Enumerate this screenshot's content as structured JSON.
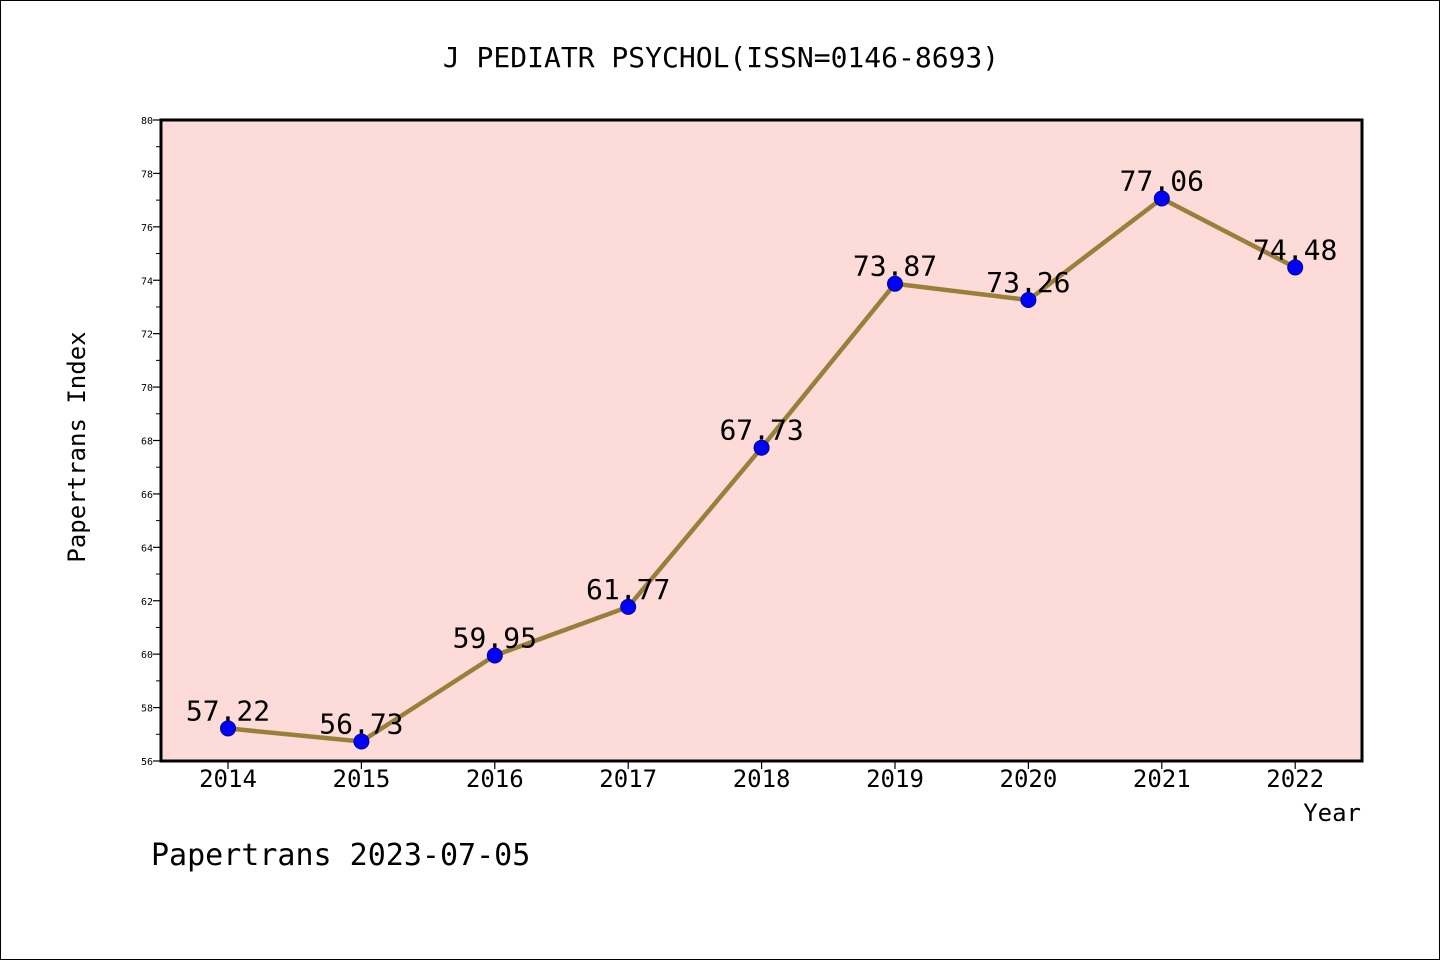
{
  "chart_data": {
    "type": "line",
    "title": "J PEDIATR PSYCHOL(ISSN=0146-8693)",
    "xlabel": "Year",
    "ylabel": "Papertrans Index",
    "footer": "Papertrans 2023-07-05",
    "categories": [
      "2014",
      "2015",
      "2016",
      "2017",
      "2018",
      "2019",
      "2020",
      "2021",
      "2022"
    ],
    "series": [
      {
        "values": [
          57.22,
          56.73,
          59.95,
          61.77,
          67.73,
          73.87,
          73.26,
          77.06,
          74.48
        ],
        "labels": [
          "57.22",
          "56.73",
          "59.95",
          "61.77",
          "67.73",
          "73.87",
          "73.26",
          "77.06",
          "74.48"
        ]
      }
    ],
    "ylim": [
      56,
      80
    ],
    "yticks": [
      56,
      58,
      60,
      62,
      64,
      66,
      68,
      70,
      72,
      74,
      76,
      78,
      80
    ],
    "grid": false,
    "colors": {
      "plot_background": "#fddbd8",
      "line": "#9a7f3a",
      "marker": "#0000ff",
      "marker_edge": "#00008b"
    }
  }
}
